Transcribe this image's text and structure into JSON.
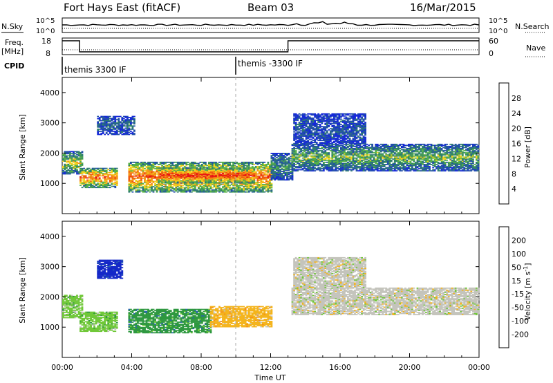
{
  "header": {
    "station": "Fort Hays East (fitACF)",
    "beam": "Beam 03",
    "date": "16/Mar/2015"
  },
  "top_panels": {
    "nsky_label": "N.Sky",
    "nsky_ticks": [
      "10^5",
      "10^0"
    ],
    "nsearch_label": "N.Search",
    "nsearch_ticks": [
      "10^5",
      "10^0"
    ],
    "freq_label": "Freq.",
    "freq_unit": "[MHz]",
    "freq_ticks": [
      "18",
      "8"
    ],
    "nave_label": "Nave",
    "nave_ticks": [
      "60",
      "0"
    ],
    "cpid_label": "CPID",
    "cpid_segments": [
      {
        "label": "themis 3300 IF",
        "start_hour": 0
      },
      {
        "label": "themis -3300 IF",
        "start_hour": 10
      }
    ],
    "freq_steps": [
      {
        "from": 0,
        "to": 1,
        "level": "high"
      },
      {
        "from": 1,
        "to": 13,
        "level": "low"
      },
      {
        "from": 13,
        "to": 24,
        "level": "high"
      }
    ]
  },
  "x_axis": {
    "label": "Time UT",
    "ticks": [
      "00:00",
      "04:00",
      "08:00",
      "12:00",
      "16:00",
      "20:00",
      "00:00"
    ]
  },
  "power_panel": {
    "ylabel": "Slant Range [km]",
    "yticks": [
      "1000",
      "2000",
      "3000",
      "4000"
    ],
    "cbar_label": "Power [dB]",
    "cbar_ticks": [
      "4",
      "8",
      "12",
      "16",
      "20",
      "24",
      "28"
    ],
    "cbar_colors": [
      "#1528d8",
      "#2250a8",
      "#2f7f6d",
      "#56b048",
      "#f2d21e",
      "#f59418",
      "#ef5a10",
      "#e81515"
    ]
  },
  "velocity_panel": {
    "ylabel": "Slant Range [km]",
    "yticks": [
      "1000",
      "2000",
      "3000",
      "4000"
    ],
    "cbar_label": "Velocity [m s",
    "cbar_label_sup": "-1",
    "cbar_label_end": "]",
    "cbar_ticks": [
      "200",
      "100",
      "50",
      "15",
      "-15",
      "-50",
      "-100",
      "-200"
    ],
    "cbar_colors": [
      "#1528c8",
      "#2a64b0",
      "#2e9840",
      "#70c838",
      "#c4c4bc",
      "#f4b41c",
      "#f48a1a",
      "#e85414",
      "#e21414"
    ]
  },
  "chart_data": {
    "type": "heatmap",
    "x_unit": "hours UT",
    "xlim": [
      0,
      24
    ],
    "ylim": [
      0,
      4500
    ],
    "power_regions": [
      {
        "t0": 0.0,
        "t1": 1.2,
        "r0": 1300,
        "r1": 2050,
        "level": 0.55
      },
      {
        "t0": 1.0,
        "t1": 3.2,
        "r0": 850,
        "r1": 1500,
        "level": 0.8
      },
      {
        "t0": 2.0,
        "t1": 4.2,
        "r0": 2600,
        "r1": 3200,
        "level": 0.25
      },
      {
        "t0": 3.8,
        "t1": 12.0,
        "r0": 700,
        "r1": 1700,
        "level": 0.82
      },
      {
        "t0": 5.5,
        "t1": 11.0,
        "r0": 1000,
        "r1": 1500,
        "level": 0.92
      },
      {
        "t0": 12.0,
        "t1": 13.2,
        "r0": 1100,
        "r1": 2000,
        "level": 0.35
      },
      {
        "t0": 13.2,
        "t1": 24.0,
        "r0": 1400,
        "r1": 2300,
        "level": 0.45
      },
      {
        "t0": 13.3,
        "t1": 17.5,
        "r0": 2300,
        "r1": 3300,
        "level": 0.2
      }
    ],
    "velocity_regions": [
      {
        "t0": 0.0,
        "t1": 1.2,
        "r0": 1300,
        "r1": 2050,
        "level": "15"
      },
      {
        "t0": 1.0,
        "t1": 3.2,
        "r0": 850,
        "r1": 1500,
        "level": "15"
      },
      {
        "t0": 2.0,
        "t1": 3.5,
        "r0": 2600,
        "r1": 3200,
        "level": "200"
      },
      {
        "t0": 3.8,
        "t1": 8.5,
        "r0": 800,
        "r1": 1600,
        "level": "50"
      },
      {
        "t0": 8.5,
        "t1": 12.0,
        "r0": 1000,
        "r1": 1700,
        "level": "-50"
      },
      {
        "t0": 13.2,
        "t1": 24.0,
        "r0": 1400,
        "r1": 2300,
        "level": "-15"
      },
      {
        "t0": 13.3,
        "t1": 17.5,
        "r0": 2300,
        "r1": 3300,
        "level": "-15"
      }
    ]
  }
}
